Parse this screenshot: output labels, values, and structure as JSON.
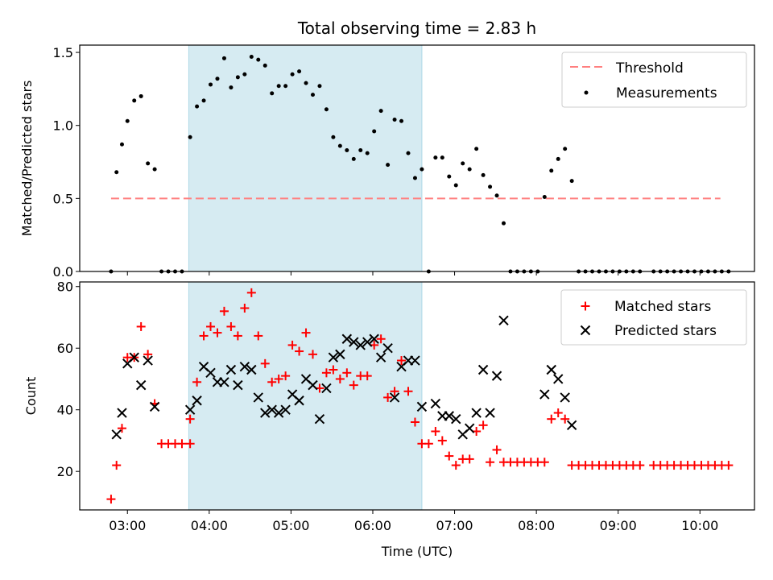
{
  "chart_data": [
    {
      "type": "scatter",
      "title": "Total observing time = 2.83 h",
      "ylabel": "Matched/Predicted stars",
      "xlabel": "",
      "xlim": [
        "02:25",
        "10:40"
      ],
      "ylim": [
        0,
        1.55
      ],
      "yticks": [
        "0.0",
        "0.5",
        "1.0",
        "1.5"
      ],
      "shaded_span": [
        "03:45",
        "06:36"
      ],
      "legend_position": "top-right",
      "threshold": {
        "name": "Threshold",
        "value": 0.5,
        "x_range": [
          "02:48",
          "10:15"
        ],
        "color": "#ff7f7f"
      },
      "series": [
        {
          "name": "Measurements",
          "color": "#000000",
          "points": [
            [
              "02:48",
              0.0
            ],
            [
              "02:52",
              0.68
            ],
            [
              "02:56",
              0.87
            ],
            [
              "03:00",
              1.03
            ],
            [
              "03:05",
              1.17
            ],
            [
              "03:10",
              1.2
            ],
            [
              "03:15",
              0.74
            ],
            [
              "03:20",
              0.7
            ],
            [
              "03:25",
              0.0
            ],
            [
              "03:30",
              0.0
            ],
            [
              "03:35",
              0.0
            ],
            [
              "03:40",
              0.0
            ],
            [
              "03:46",
              0.92
            ],
            [
              "03:51",
              1.13
            ],
            [
              "03:56",
              1.17
            ],
            [
              "04:01",
              1.28
            ],
            [
              "04:06",
              1.32
            ],
            [
              "04:11",
              1.46
            ],
            [
              "04:16",
              1.26
            ],
            [
              "04:21",
              1.33
            ],
            [
              "04:26",
              1.35
            ],
            [
              "04:31",
              1.47
            ],
            [
              "04:36",
              1.45
            ],
            [
              "04:41",
              1.41
            ],
            [
              "04:46",
              1.22
            ],
            [
              "04:51",
              1.27
            ],
            [
              "04:56",
              1.27
            ],
            [
              "05:01",
              1.35
            ],
            [
              "05:06",
              1.37
            ],
            [
              "05:11",
              1.29
            ],
            [
              "05:16",
              1.21
            ],
            [
              "05:21",
              1.27
            ],
            [
              "05:26",
              1.11
            ],
            [
              "05:31",
              0.92
            ],
            [
              "05:36",
              0.86
            ],
            [
              "05:41",
              0.83
            ],
            [
              "05:46",
              0.77
            ],
            [
              "05:51",
              0.83
            ],
            [
              "05:56",
              0.81
            ],
            [
              "06:01",
              0.96
            ],
            [
              "06:06",
              1.1
            ],
            [
              "06:11",
              0.73
            ],
            [
              "06:16",
              1.04
            ],
            [
              "06:21",
              1.03
            ],
            [
              "06:26",
              0.81
            ],
            [
              "06:31",
              0.64
            ],
            [
              "06:36",
              0.7
            ],
            [
              "06:41",
              0.0
            ],
            [
              "06:46",
              0.78
            ],
            [
              "06:51",
              0.78
            ],
            [
              "06:56",
              0.65
            ],
            [
              "07:01",
              0.59
            ],
            [
              "07:06",
              0.74
            ],
            [
              "07:11",
              0.7
            ],
            [
              "07:16",
              0.84
            ],
            [
              "07:21",
              0.66
            ],
            [
              "07:26",
              0.58
            ],
            [
              "07:31",
              0.52
            ],
            [
              "07:36",
              0.33
            ],
            [
              "07:41",
              0.0
            ],
            [
              "07:46",
              0.0
            ],
            [
              "07:51",
              0.0
            ],
            [
              "07:56",
              0.0
            ],
            [
              "08:01",
              0.0
            ],
            [
              "08:06",
              0.51
            ],
            [
              "08:11",
              0.69
            ],
            [
              "08:16",
              0.77
            ],
            [
              "08:21",
              0.84
            ],
            [
              "08:26",
              0.62
            ],
            [
              "08:31",
              0.0
            ],
            [
              "08:36",
              0.0
            ],
            [
              "08:41",
              0.0
            ],
            [
              "08:46",
              0.0
            ],
            [
              "08:51",
              0.0
            ],
            [
              "08:56",
              0.0
            ],
            [
              "09:01",
              0.0
            ],
            [
              "09:06",
              0.0
            ],
            [
              "09:11",
              0.0
            ],
            [
              "09:16",
              0.0
            ],
            [
              "09:26",
              0.0
            ],
            [
              "09:31",
              0.0
            ],
            [
              "09:36",
              0.0
            ],
            [
              "09:41",
              0.0
            ],
            [
              "09:46",
              0.0
            ],
            [
              "09:51",
              0.0
            ],
            [
              "09:56",
              0.0
            ],
            [
              "10:01",
              0.0
            ],
            [
              "10:06",
              0.0
            ],
            [
              "10:11",
              0.0
            ],
            [
              "10:16",
              0.0
            ],
            [
              "10:21",
              0.0
            ]
          ]
        }
      ]
    },
    {
      "type": "scatter",
      "title": "",
      "ylabel": "Count",
      "xlabel": "Time (UTC)",
      "xlim": [
        "02:25",
        "10:40"
      ],
      "ylim": [
        7.5,
        81.5
      ],
      "yticks": [
        "20",
        "40",
        "60",
        "80"
      ],
      "xticks": [
        "03:00",
        "04:00",
        "05:00",
        "06:00",
        "07:00",
        "08:00",
        "09:00",
        "10:00"
      ],
      "shaded_span": [
        "03:45",
        "06:36"
      ],
      "legend_position": "top-right",
      "series": [
        {
          "name": "Matched stars",
          "color": "#ff0000",
          "marker": "plus",
          "points": [
            [
              "02:48",
              11
            ],
            [
              "02:52",
              22
            ],
            [
              "02:56",
              34
            ],
            [
              "03:00",
              57
            ],
            [
              "03:05",
              57
            ],
            [
              "03:10",
              67
            ],
            [
              "03:15",
              58
            ],
            [
              "03:20",
              42
            ],
            [
              "03:25",
              29
            ],
            [
              "03:30",
              29
            ],
            [
              "03:35",
              29
            ],
            [
              "03:40",
              29
            ],
            [
              "03:46",
              29
            ],
            [
              "03:46",
              37
            ],
            [
              "03:51",
              49
            ],
            [
              "03:56",
              64
            ],
            [
              "04:01",
              67
            ],
            [
              "04:06",
              65
            ],
            [
              "04:11",
              72
            ],
            [
              "04:16",
              67
            ],
            [
              "04:21",
              64
            ],
            [
              "04:26",
              73
            ],
            [
              "04:31",
              78
            ],
            [
              "04:36",
              64
            ],
            [
              "04:41",
              55
            ],
            [
              "04:46",
              49
            ],
            [
              "04:51",
              50
            ],
            [
              "04:56",
              51
            ],
            [
              "05:01",
              61
            ],
            [
              "05:06",
              59
            ],
            [
              "05:11",
              65
            ],
            [
              "05:16",
              58
            ],
            [
              "05:21",
              47
            ],
            [
              "05:26",
              52
            ],
            [
              "05:31",
              53
            ],
            [
              "05:36",
              50
            ],
            [
              "05:41",
              52
            ],
            [
              "05:46",
              48
            ],
            [
              "05:51",
              51
            ],
            [
              "05:56",
              51
            ],
            [
              "06:01",
              61
            ],
            [
              "06:06",
              63
            ],
            [
              "06:11",
              44
            ],
            [
              "06:16",
              46
            ],
            [
              "06:21",
              56
            ],
            [
              "06:26",
              46
            ],
            [
              "06:31",
              36
            ],
            [
              "06:36",
              29
            ],
            [
              "06:41",
              29
            ],
            [
              "06:46",
              33
            ],
            [
              "06:51",
              30
            ],
            [
              "06:56",
              25
            ],
            [
              "07:01",
              22
            ],
            [
              "07:06",
              24
            ],
            [
              "07:11",
              24
            ],
            [
              "07:16",
              33
            ],
            [
              "07:21",
              35
            ],
            [
              "07:26",
              23
            ],
            [
              "07:31",
              27
            ],
            [
              "07:36",
              23
            ],
            [
              "07:41",
              23
            ],
            [
              "07:46",
              23
            ],
            [
              "07:51",
              23
            ],
            [
              "07:56",
              23
            ],
            [
              "08:01",
              23
            ],
            [
              "08:06",
              23
            ],
            [
              "08:11",
              37
            ],
            [
              "08:16",
              39
            ],
            [
              "08:21",
              37
            ],
            [
              "08:26",
              22
            ],
            [
              "08:31",
              22
            ],
            [
              "08:36",
              22
            ],
            [
              "08:41",
              22
            ],
            [
              "08:46",
              22
            ],
            [
              "08:51",
              22
            ],
            [
              "08:56",
              22
            ],
            [
              "09:01",
              22
            ],
            [
              "09:06",
              22
            ],
            [
              "09:11",
              22
            ],
            [
              "09:16",
              22
            ],
            [
              "09:26",
              22
            ],
            [
              "09:31",
              22
            ],
            [
              "09:36",
              22
            ],
            [
              "09:41",
              22
            ],
            [
              "09:46",
              22
            ],
            [
              "09:51",
              22
            ],
            [
              "09:56",
              22
            ],
            [
              "10:01",
              22
            ],
            [
              "10:06",
              22
            ],
            [
              "10:11",
              22
            ],
            [
              "10:16",
              22
            ],
            [
              "10:21",
              22
            ]
          ]
        },
        {
          "name": "Predicted stars",
          "color": "#000000",
          "marker": "x",
          "points": [
            [
              "02:52",
              32
            ],
            [
              "02:56",
              39
            ],
            [
              "03:00",
              55
            ],
            [
              "03:05",
              57
            ],
            [
              "03:10",
              48
            ],
            [
              "03:15",
              56
            ],
            [
              "03:20",
              41
            ],
            [
              "03:46",
              40
            ],
            [
              "03:51",
              43
            ],
            [
              "03:56",
              54
            ],
            [
              "04:01",
              52
            ],
            [
              "04:06",
              49
            ],
            [
              "04:11",
              49
            ],
            [
              "04:16",
              53
            ],
            [
              "04:21",
              48
            ],
            [
              "04:26",
              54
            ],
            [
              "04:31",
              53
            ],
            [
              "04:36",
              44
            ],
            [
              "04:41",
              39
            ],
            [
              "04:46",
              40
            ],
            [
              "04:51",
              39
            ],
            [
              "04:56",
              40
            ],
            [
              "05:01",
              45
            ],
            [
              "05:06",
              43
            ],
            [
              "05:11",
              50
            ],
            [
              "05:16",
              48
            ],
            [
              "05:21",
              37
            ],
            [
              "05:26",
              47
            ],
            [
              "05:31",
              57
            ],
            [
              "05:36",
              58
            ],
            [
              "05:41",
              63
            ],
            [
              "05:46",
              62
            ],
            [
              "05:51",
              61
            ],
            [
              "05:56",
              62
            ],
            [
              "06:01",
              63
            ],
            [
              "06:06",
              57
            ],
            [
              "06:11",
              60
            ],
            [
              "06:16",
              44
            ],
            [
              "06:21",
              54
            ],
            [
              "06:26",
              56
            ],
            [
              "06:31",
              56
            ],
            [
              "06:36",
              41
            ],
            [
              "06:46",
              42
            ],
            [
              "06:51",
              38
            ],
            [
              "06:56",
              38
            ],
            [
              "07:01",
              37
            ],
            [
              "07:06",
              32
            ],
            [
              "07:11",
              34
            ],
            [
              "07:16",
              39
            ],
            [
              "07:21",
              53
            ],
            [
              "07:26",
              39
            ],
            [
              "07:31",
              51
            ],
            [
              "07:36",
              69
            ],
            [
              "08:06",
              45
            ],
            [
              "08:11",
              53
            ],
            [
              "08:16",
              50
            ],
            [
              "08:21",
              44
            ],
            [
              "08:26",
              35
            ]
          ]
        }
      ]
    }
  ]
}
